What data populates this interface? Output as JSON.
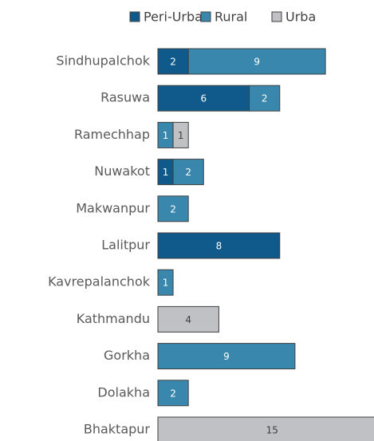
{
  "chart_data": {
    "type": "stacked-bar-horizontal",
    "categories": [
      "Sindhupalchok",
      "Rasuwa",
      "Ramechhap",
      "Nuwakot",
      "Makwanpur",
      "Lalitpur",
      "Kavrepalanchok",
      "Kathmandu",
      "Gorkha",
      "Dolakha",
      "Bhaktapur"
    ],
    "series": [
      {
        "name": "Peri-Urban",
        "color": "#0f5a8a",
        "values": [
          2,
          6,
          null,
          1,
          null,
          8,
          null,
          null,
          null,
          null,
          null
        ]
      },
      {
        "name": "Rural",
        "color": "#3a87ad",
        "values": [
          9,
          2,
          1,
          2,
          2,
          null,
          1,
          null,
          9,
          2,
          null
        ]
      },
      {
        "name": "Urba",
        "color": "#bfc1c5",
        "values": [
          null,
          null,
          1,
          null,
          null,
          null,
          null,
          4,
          null,
          null,
          15
        ]
      }
    ],
    "legend": "top"
  }
}
